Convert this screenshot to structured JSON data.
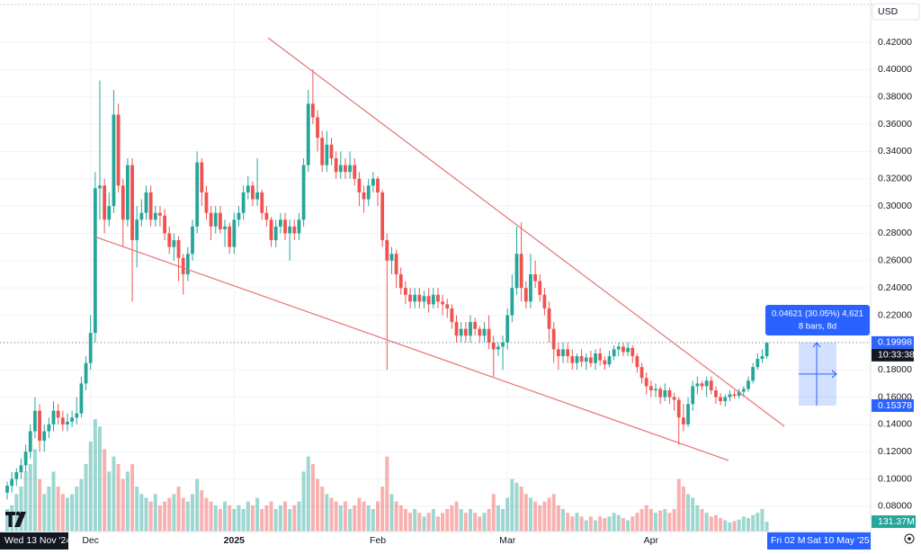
{
  "chart_data": {
    "type": "candlestick",
    "currency": "USD",
    "categories": [
      null,
      null,
      null,
      null,
      null,
      null,
      null,
      null,
      null,
      null,
      null,
      null,
      null,
      null,
      null,
      null,
      null,
      null,
      "Dec",
      null,
      null,
      null,
      null,
      null,
      null,
      null,
      null,
      null,
      null,
      null,
      null,
      null,
      null,
      null,
      null,
      null,
      null,
      null,
      null,
      null,
      null,
      null,
      null,
      null,
      null,
      null,
      null,
      null,
      null,
      "2025",
      null,
      null,
      null,
      null,
      null,
      null,
      null,
      null,
      null,
      null,
      null,
      null,
      null,
      null,
      null,
      null,
      null,
      null,
      null,
      null,
      null,
      null,
      null,
      null,
      null,
      null,
      null,
      null,
      null,
      null,
      "Feb",
      null,
      null,
      null,
      null,
      null,
      null,
      null,
      null,
      null,
      null,
      null,
      null,
      null,
      null,
      null,
      null,
      null,
      null,
      null,
      null,
      null,
      null,
      null,
      null,
      null,
      null,
      null,
      "Mar",
      null,
      null,
      null,
      null,
      null,
      null,
      null,
      null,
      null,
      null,
      null,
      null,
      null,
      null,
      null,
      null,
      null,
      null,
      null,
      null,
      null,
      null,
      null,
      null,
      null,
      null,
      null,
      null,
      null,
      null,
      "Apr",
      null,
      null,
      null,
      null,
      null,
      null,
      null,
      null,
      null,
      null,
      null,
      null,
      null,
      null,
      null,
      null,
      null,
      null,
      null,
      null,
      null,
      null,
      null,
      null,
      null
    ],
    "candles": [
      [
        0.09,
        0.098,
        0.085,
        0.095
      ],
      [
        0.095,
        0.105,
        0.09,
        0.1
      ],
      [
        0.1,
        0.108,
        0.095,
        0.105
      ],
      [
        0.105,
        0.115,
        0.1,
        0.11
      ],
      [
        0.11,
        0.125,
        0.105,
        0.12
      ],
      [
        0.12,
        0.14,
        0.115,
        0.135
      ],
      [
        0.135,
        0.16,
        0.13,
        0.15
      ],
      [
        0.15,
        0.155,
        0.12,
        0.128
      ],
      [
        0.128,
        0.14,
        0.12,
        0.135
      ],
      [
        0.135,
        0.145,
        0.13,
        0.14
      ],
      [
        0.14,
        0.157,
        0.135,
        0.15
      ],
      [
        0.15,
        0.155,
        0.14,
        0.145
      ],
      [
        0.145,
        0.15,
        0.135,
        0.14
      ],
      [
        0.14,
        0.148,
        0.135,
        0.142
      ],
      [
        0.142,
        0.15,
        0.138,
        0.145
      ],
      [
        0.145,
        0.16,
        0.14,
        0.148
      ],
      [
        0.148,
        0.175,
        0.145,
        0.17
      ],
      [
        0.17,
        0.19,
        0.165,
        0.185
      ],
      [
        0.185,
        0.22,
        0.18,
        0.207
      ],
      [
        0.207,
        0.325,
        0.2,
        0.313
      ],
      [
        0.313,
        0.392,
        0.29,
        0.315
      ],
      [
        0.315,
        0.32,
        0.28,
        0.29
      ],
      [
        0.29,
        0.31,
        0.285,
        0.3
      ],
      [
        0.3,
        0.385,
        0.295,
        0.367
      ],
      [
        0.367,
        0.375,
        0.31,
        0.315
      ],
      [
        0.315,
        0.32,
        0.27,
        0.29
      ],
      [
        0.29,
        0.335,
        0.285,
        0.33
      ],
      [
        0.33,
        0.335,
        0.23,
        0.275
      ],
      [
        0.275,
        0.3,
        0.255,
        0.29
      ],
      [
        0.29,
        0.305,
        0.285,
        0.295
      ],
      [
        0.295,
        0.315,
        0.29,
        0.31
      ],
      [
        0.31,
        0.315,
        0.285,
        0.29
      ],
      [
        0.29,
        0.3,
        0.285,
        0.295
      ],
      [
        0.295,
        0.3,
        0.285,
        0.293
      ],
      [
        0.293,
        0.298,
        0.275,
        0.28
      ],
      [
        0.28,
        0.285,
        0.265,
        0.27
      ],
      [
        0.27,
        0.28,
        0.26,
        0.275
      ],
      [
        0.275,
        0.278,
        0.245,
        0.262
      ],
      [
        0.262,
        0.265,
        0.235,
        0.25
      ],
      [
        0.25,
        0.27,
        0.245,
        0.265
      ],
      [
        0.265,
        0.29,
        0.26,
        0.285
      ],
      [
        0.285,
        0.34,
        0.28,
        0.332
      ],
      [
        0.332,
        0.335,
        0.3,
        0.31
      ],
      [
        0.31,
        0.315,
        0.29,
        0.295
      ],
      [
        0.295,
        0.3,
        0.275,
        0.285
      ],
      [
        0.285,
        0.3,
        0.28,
        0.295
      ],
      [
        0.295,
        0.3,
        0.28,
        0.283
      ],
      [
        0.283,
        0.29,
        0.27,
        0.285
      ],
      [
        0.285,
        0.288,
        0.265,
        0.27
      ],
      [
        0.27,
        0.295,
        0.265,
        0.29
      ],
      [
        0.29,
        0.3,
        0.285,
        0.295
      ],
      [
        0.295,
        0.315,
        0.29,
        0.31
      ],
      [
        0.31,
        0.322,
        0.305,
        0.315
      ],
      [
        0.315,
        0.318,
        0.3,
        0.305
      ],
      [
        0.305,
        0.335,
        0.3,
        0.31
      ],
      [
        0.31,
        0.312,
        0.29,
        0.295
      ],
      [
        0.295,
        0.3,
        0.285,
        0.29
      ],
      [
        0.29,
        0.292,
        0.27,
        0.275
      ],
      [
        0.275,
        0.29,
        0.27,
        0.285
      ],
      [
        0.285,
        0.295,
        0.28,
        0.29
      ],
      [
        0.29,
        0.295,
        0.275,
        0.28
      ],
      [
        0.28,
        0.29,
        0.26,
        0.285
      ],
      [
        0.285,
        0.29,
        0.275,
        0.28
      ],
      [
        0.28,
        0.295,
        0.275,
        0.29
      ],
      [
        0.29,
        0.335,
        0.285,
        0.33
      ],
      [
        0.33,
        0.385,
        0.325,
        0.375
      ],
      [
        0.375,
        0.4,
        0.36,
        0.365
      ],
      [
        0.365,
        0.37,
        0.34,
        0.35
      ],
      [
        0.35,
        0.355,
        0.325,
        0.33
      ],
      [
        0.33,
        0.355,
        0.325,
        0.345
      ],
      [
        0.345,
        0.35,
        0.33,
        0.335
      ],
      [
        0.335,
        0.34,
        0.32,
        0.325
      ],
      [
        0.325,
        0.34,
        0.32,
        0.33
      ],
      [
        0.33,
        0.335,
        0.32,
        0.325
      ],
      [
        0.325,
        0.34,
        0.32,
        0.33
      ],
      [
        0.33,
        0.335,
        0.315,
        0.32
      ],
      [
        0.32,
        0.325,
        0.3,
        0.31
      ],
      [
        0.31,
        0.315,
        0.295,
        0.305
      ],
      [
        0.305,
        0.32,
        0.3,
        0.315
      ],
      [
        0.315,
        0.325,
        0.31,
        0.32
      ],
      [
        0.32,
        0.322,
        0.3,
        0.31
      ],
      [
        0.31,
        0.312,
        0.27,
        0.275
      ],
      [
        0.275,
        0.28,
        0.18,
        0.26
      ],
      [
        0.26,
        0.27,
        0.25,
        0.265
      ],
      [
        0.265,
        0.268,
        0.24,
        0.25
      ],
      [
        0.25,
        0.255,
        0.235,
        0.24
      ],
      [
        0.24,
        0.245,
        0.228,
        0.235
      ],
      [
        0.235,
        0.24,
        0.225,
        0.23
      ],
      [
        0.23,
        0.24,
        0.225,
        0.235
      ],
      [
        0.235,
        0.24,
        0.225,
        0.23
      ],
      [
        0.23,
        0.238,
        0.225,
        0.234
      ],
      [
        0.234,
        0.24,
        0.222,
        0.228
      ],
      [
        0.228,
        0.24,
        0.225,
        0.235
      ],
      [
        0.235,
        0.24,
        0.225,
        0.23
      ],
      [
        0.23,
        0.235,
        0.22,
        0.228
      ],
      [
        0.228,
        0.232,
        0.218,
        0.225
      ],
      [
        0.225,
        0.228,
        0.21,
        0.215
      ],
      [
        0.215,
        0.22,
        0.2,
        0.205
      ],
      [
        0.205,
        0.215,
        0.2,
        0.21
      ],
      [
        0.21,
        0.215,
        0.2,
        0.205
      ],
      [
        0.205,
        0.22,
        0.2,
        0.215
      ],
      [
        0.215,
        0.218,
        0.205,
        0.21
      ],
      [
        0.21,
        0.212,
        0.2,
        0.205
      ],
      [
        0.205,
        0.215,
        0.2,
        0.21
      ],
      [
        0.21,
        0.22,
        0.195,
        0.2
      ],
      [
        0.2,
        0.205,
        0.175,
        0.195
      ],
      [
        0.195,
        0.2,
        0.19,
        0.197
      ],
      [
        0.197,
        0.205,
        0.18,
        0.2
      ],
      [
        0.2,
        0.225,
        0.195,
        0.22
      ],
      [
        0.22,
        0.25,
        0.215,
        0.24
      ],
      [
        0.24,
        0.285,
        0.235,
        0.265
      ],
      [
        0.265,
        0.288,
        0.23,
        0.24
      ],
      [
        0.24,
        0.245,
        0.225,
        0.23
      ],
      [
        0.23,
        0.265,
        0.225,
        0.25
      ],
      [
        0.25,
        0.26,
        0.24,
        0.245
      ],
      [
        0.245,
        0.25,
        0.23,
        0.235
      ],
      [
        0.235,
        0.24,
        0.22,
        0.225
      ],
      [
        0.225,
        0.23,
        0.2,
        0.21
      ],
      [
        0.21,
        0.215,
        0.185,
        0.195
      ],
      [
        0.195,
        0.2,
        0.18,
        0.19
      ],
      [
        0.19,
        0.2,
        0.185,
        0.195
      ],
      [
        0.195,
        0.2,
        0.185,
        0.19
      ],
      [
        0.19,
        0.195,
        0.18,
        0.185
      ],
      [
        0.185,
        0.192,
        0.18,
        0.19
      ],
      [
        0.19,
        0.195,
        0.182,
        0.186
      ],
      [
        0.186,
        0.192,
        0.18,
        0.189
      ],
      [
        0.189,
        0.194,
        0.182,
        0.185
      ],
      [
        0.185,
        0.195,
        0.18,
        0.192
      ],
      [
        0.192,
        0.196,
        0.183,
        0.187
      ],
      [
        0.187,
        0.19,
        0.18,
        0.184
      ],
      [
        0.184,
        0.194,
        0.182,
        0.19
      ],
      [
        0.19,
        0.198,
        0.187,
        0.195
      ],
      [
        0.195,
        0.2,
        0.19,
        0.197
      ],
      [
        0.197,
        0.2,
        0.19,
        0.193
      ],
      [
        0.193,
        0.2,
        0.19,
        0.196
      ],
      [
        0.196,
        0.198,
        0.185,
        0.19
      ],
      [
        0.19,
        0.192,
        0.178,
        0.182
      ],
      [
        0.182,
        0.185,
        0.17,
        0.174
      ],
      [
        0.174,
        0.178,
        0.162,
        0.168
      ],
      [
        0.168,
        0.172,
        0.16,
        0.165
      ],
      [
        0.165,
        0.17,
        0.16,
        0.166
      ],
      [
        0.166,
        0.168,
        0.155,
        0.16
      ],
      [
        0.16,
        0.17,
        0.157,
        0.165
      ],
      [
        0.165,
        0.167,
        0.155,
        0.16
      ],
      [
        0.16,
        0.163,
        0.15,
        0.158
      ],
      [
        0.158,
        0.16,
        0.125,
        0.145
      ],
      [
        0.145,
        0.155,
        0.135,
        0.14
      ],
      [
        0.14,
        0.16,
        0.138,
        0.155
      ],
      [
        0.155,
        0.172,
        0.15,
        0.168
      ],
      [
        0.168,
        0.175,
        0.162,
        0.17
      ],
      [
        0.17,
        0.172,
        0.165,
        0.168
      ],
      [
        0.168,
        0.175,
        0.16,
        0.172
      ],
      [
        0.172,
        0.175,
        0.162,
        0.165
      ],
      [
        0.165,
        0.168,
        0.155,
        0.16
      ],
      [
        0.16,
        0.163,
        0.154,
        0.157
      ],
      [
        0.157,
        0.162,
        0.153,
        0.16
      ],
      [
        0.16,
        0.165,
        0.157,
        0.162
      ],
      [
        0.162,
        0.165,
        0.159,
        0.161
      ],
      [
        0.161,
        0.166,
        0.159,
        0.164
      ],
      [
        0.164,
        0.168,
        0.16,
        0.166
      ],
      [
        0.166,
        0.175,
        0.164,
        0.172
      ],
      [
        0.172,
        0.185,
        0.17,
        0.182
      ],
      [
        0.182,
        0.192,
        0.18,
        0.188
      ],
      [
        0.188,
        0.195,
        0.185,
        0.19
      ],
      [
        0.19,
        0.2,
        0.188,
        0.19998
      ]
    ],
    "volumes": [
      300,
      350,
      500,
      600,
      800,
      900,
      1100,
      700,
      500,
      600,
      800,
      600,
      500,
      450,
      500,
      600,
      700,
      900,
      1200,
      1500,
      1400,
      1100,
      800,
      1000,
      900,
      700,
      800,
      900,
      600,
      500,
      450,
      400,
      500,
      350,
      400,
      450,
      500,
      600,
      450,
      400,
      500,
      700,
      550,
      450,
      400,
      350,
      300,
      400,
      350,
      300,
      350,
      300,
      400,
      350,
      450,
      300,
      350,
      400,
      300,
      350,
      400,
      300,
      350,
      400,
      800,
      1000,
      900,
      700,
      600,
      500,
      450,
      400,
      350,
      400,
      300,
      350,
      450,
      400,
      350,
      300,
      400,
      600,
      1000,
      500,
      400,
      350,
      300,
      250,
      300,
      250,
      200,
      250,
      300,
      200,
      250,
      300,
      350,
      400,
      300,
      250,
      300,
      250,
      200,
      250,
      300,
      500,
      350,
      300,
      450,
      700,
      650,
      600,
      500,
      450,
      400,
      350,
      400,
      450,
      500,
      350,
      300,
      250,
      200,
      250,
      200,
      150,
      200,
      150,
      200,
      180,
      200,
      250,
      220,
      180,
      150,
      200,
      250,
      300,
      350,
      300,
      250,
      280,
      300,
      250,
      300,
      700,
      600,
      500,
      450,
      350,
      300,
      250,
      200,
      220,
      180,
      150,
      120,
      140,
      160,
      200,
      180,
      220,
      250,
      300,
      131.37
    ],
    "volume_label": "131.37M",
    "colors": {
      "up": "#26a69a",
      "down": "#ef5350"
    },
    "ylim": [
      0.0615,
      0.451
    ],
    "yticks": [
      {
        "value": 0.42,
        "label": "0.42000"
      },
      {
        "value": 0.4,
        "label": "0.40000"
      },
      {
        "value": 0.38,
        "label": "0.38000"
      },
      {
        "value": 0.36,
        "label": "0.36000"
      },
      {
        "value": 0.34,
        "label": "0.34000"
      },
      {
        "value": 0.32,
        "label": "0.32000"
      },
      {
        "value": 0.3,
        "label": "0.30000"
      },
      {
        "value": 0.28,
        "label": "0.28000"
      },
      {
        "value": 0.26,
        "label": "0.26000"
      },
      {
        "value": 0.24,
        "label": "0.24000"
      },
      {
        "value": 0.22,
        "label": "0.22000"
      },
      {
        "value": 0.2,
        "label": "0.20000"
      },
      {
        "value": 0.18,
        "label": "0.18000"
      },
      {
        "value": 0.16,
        "label": "0.16000"
      },
      {
        "value": 0.14,
        "label": "0.14000"
      },
      {
        "value": 0.12,
        "label": "0.12000"
      },
      {
        "value": 0.1,
        "label": "0.10000"
      },
      {
        "value": 0.08,
        "label": "0.08000"
      }
    ],
    "grid": true,
    "last_price": 0.19998,
    "countdown": "10:33:38",
    "measure": {
      "low": 0.15378,
      "label": "0.04621 (30.05%) 4,621",
      "sublabel": "8 bars, 8d"
    },
    "crosshair_start": "Wed 13 Nov '24",
    "range_labels": [
      "Fri 02 M",
      "Sat 10 May '25"
    ]
  }
}
